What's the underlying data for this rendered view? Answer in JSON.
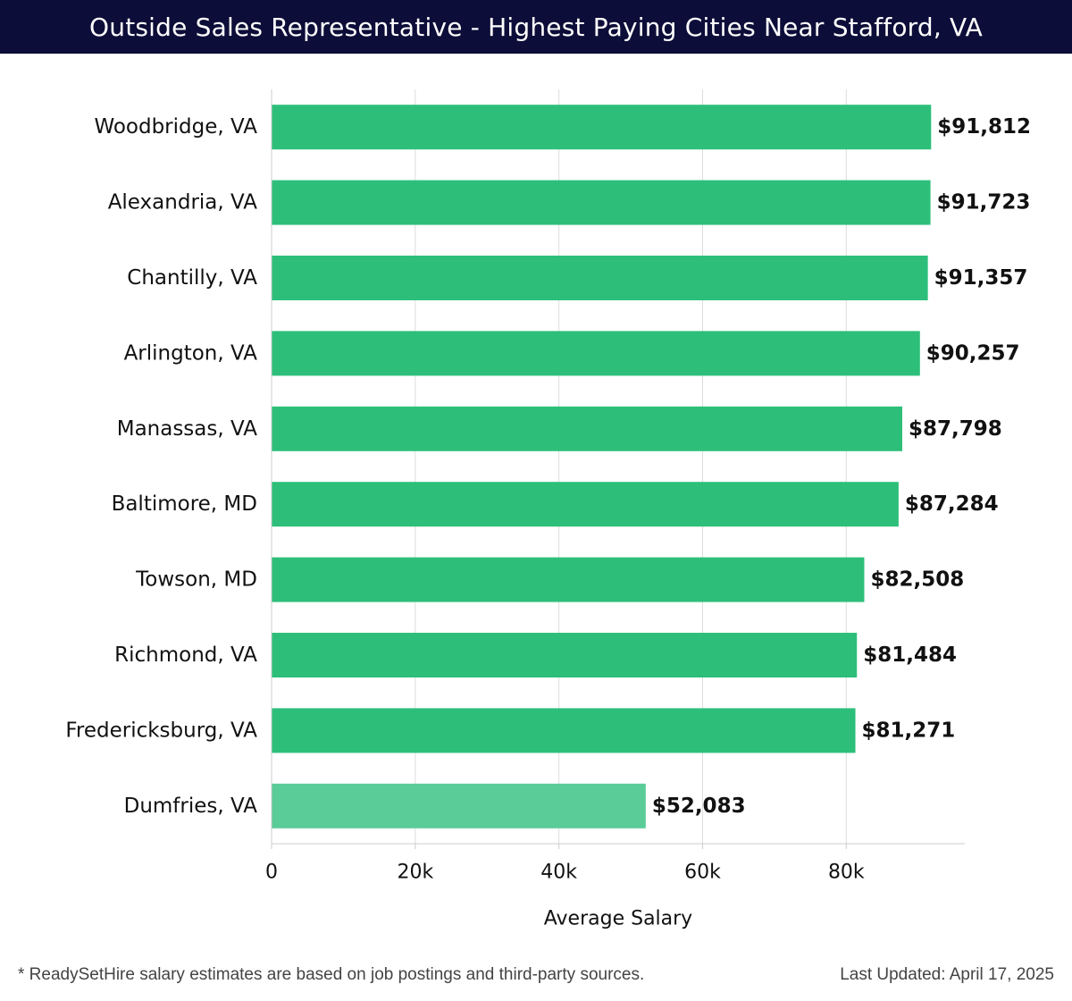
{
  "header": {
    "title": "Outside Sales Representative - Highest Paying Cities Near Stafford, VA"
  },
  "chart_data": {
    "type": "bar",
    "orientation": "horizontal",
    "title": "Outside Sales Representative - Highest Paying Cities Near Stafford, VA",
    "xlabel": "Average Salary",
    "ylabel": "",
    "xlim": [
      0,
      96500
    ],
    "grid": true,
    "x_ticks": [
      0,
      20000,
      40000,
      60000,
      80000
    ],
    "x_tick_labels": [
      "0",
      "20k",
      "40k",
      "60k",
      "80k"
    ],
    "categories": [
      "Woodbridge, VA",
      "Alexandria, VA",
      "Chantilly, VA",
      "Arlington, VA",
      "Manassas, VA",
      "Baltimore, MD",
      "Towson, MD",
      "Richmond, VA",
      "Fredericksburg, VA",
      "Dumfries, VA"
    ],
    "values": [
      91812,
      91723,
      91357,
      90257,
      87798,
      87284,
      82508,
      81484,
      81271,
      52083
    ],
    "value_labels": [
      "$91,812",
      "$91,723",
      "$91,357",
      "$90,257",
      "$87,798",
      "$87,284",
      "$82,508",
      "$81,484",
      "$81,271",
      "$52,083"
    ],
    "colors": {
      "bar": "#2dbf7a",
      "bar_last": "#5acc98",
      "grid": "#dddddd",
      "axis": "#cccccc",
      "text": "#111111"
    }
  },
  "footer": {
    "note": "* ReadySetHire salary estimates are based on job postings and third-party sources.",
    "updated": "Last Updated: April 17, 2025"
  }
}
